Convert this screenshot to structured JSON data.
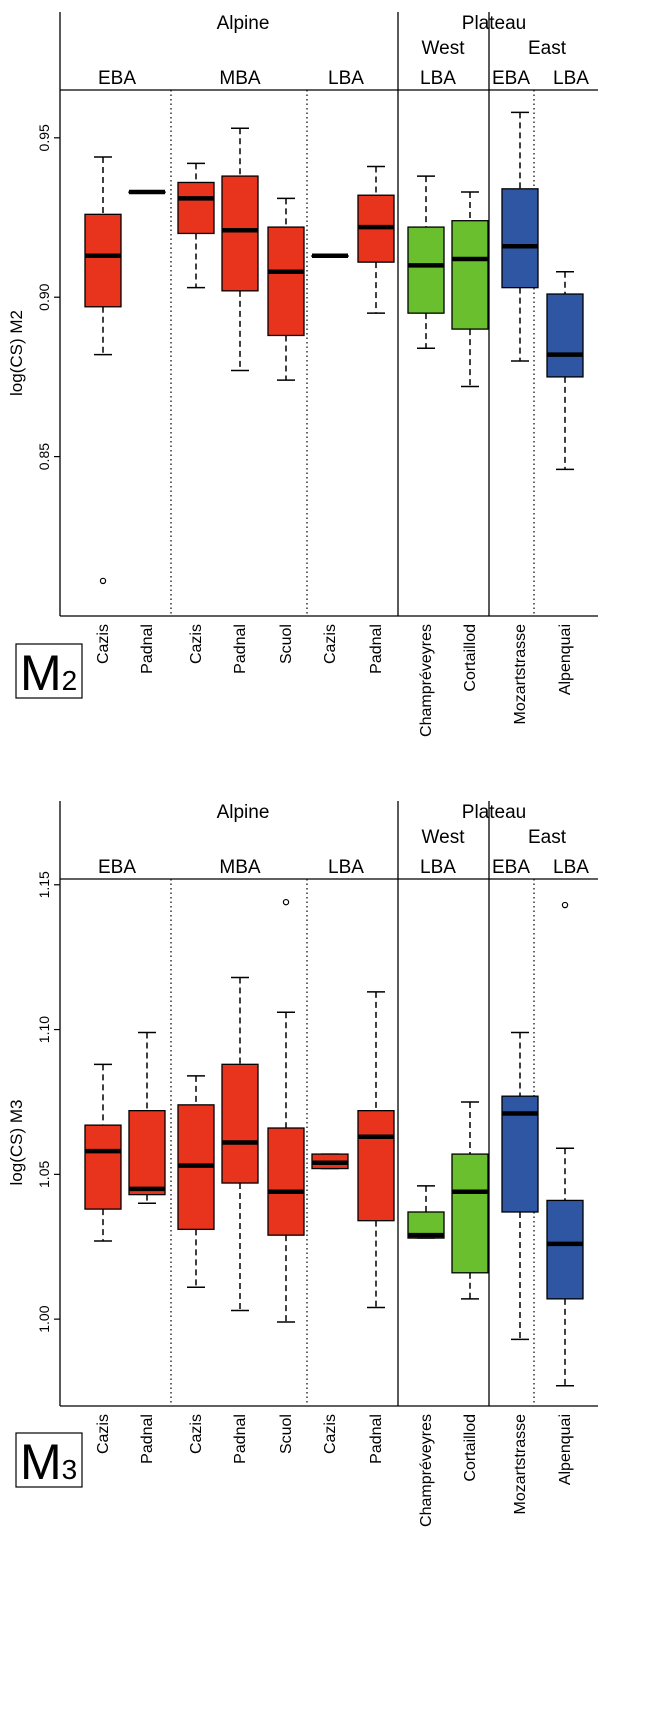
{
  "colors": {
    "alpine": "#e8341c",
    "west": "#6abf2e",
    "east": "#2e56a3"
  },
  "chart_data": [
    {
      "type": "boxplot",
      "tag": "M",
      "tag_sub": "2",
      "ylabel": "log(CS) M2",
      "ylim": [
        0.8,
        0.965
      ],
      "yticks": [
        0.85,
        0.9,
        0.95
      ],
      "ytick_labels": [
        "0.85",
        "0.90",
        "0.95"
      ],
      "region_headers": [
        {
          "label": "Alpine"
        },
        {
          "label": "Plateau"
        },
        {
          "label": "West"
        },
        {
          "label": "East"
        }
      ],
      "period_headers": [
        "EBA",
        "MBA",
        "LBA",
        "LBA",
        "EBA",
        "LBA"
      ],
      "categories": [
        "Cazis",
        "Padnal",
        "Cazis",
        "Padnal",
        "Scuol",
        "Cazis",
        "Padnal",
        "Champréveyres",
        "Cortaillod",
        "Mozartstrasse",
        "Alpenquai"
      ],
      "groups": [
        "alpine",
        "alpine",
        "alpine",
        "alpine",
        "alpine",
        "alpine",
        "alpine",
        "west",
        "west",
        "east",
        "east"
      ],
      "boxes": [
        {
          "min": 0.882,
          "q1": 0.897,
          "median": 0.913,
          "q3": 0.926,
          "max": 0.944,
          "outliers": [
            0.811
          ]
        },
        {
          "min": 0.933,
          "q1": 0.933,
          "median": 0.933,
          "q3": 0.933,
          "max": 0.933,
          "outliers": []
        },
        {
          "min": 0.903,
          "q1": 0.92,
          "median": 0.931,
          "q3": 0.936,
          "max": 0.942,
          "outliers": []
        },
        {
          "min": 0.877,
          "q1": 0.902,
          "median": 0.921,
          "q3": 0.938,
          "max": 0.953,
          "outliers": []
        },
        {
          "min": 0.874,
          "q1": 0.888,
          "median": 0.908,
          "q3": 0.922,
          "max": 0.931,
          "outliers": []
        },
        {
          "min": 0.913,
          "q1": 0.913,
          "median": 0.913,
          "q3": 0.913,
          "max": 0.913,
          "outliers": []
        },
        {
          "min": 0.895,
          "q1": 0.911,
          "median": 0.922,
          "q3": 0.932,
          "max": 0.941,
          "outliers": []
        },
        {
          "min": 0.884,
          "q1": 0.895,
          "median": 0.91,
          "q3": 0.922,
          "max": 0.938,
          "outliers": []
        },
        {
          "min": 0.872,
          "q1": 0.89,
          "median": 0.912,
          "q3": 0.924,
          "max": 0.933,
          "outliers": []
        },
        {
          "min": 0.88,
          "q1": 0.903,
          "median": 0.916,
          "q3": 0.934,
          "max": 0.958,
          "outliers": []
        },
        {
          "min": 0.846,
          "q1": 0.875,
          "median": 0.882,
          "q3": 0.901,
          "max": 0.908,
          "outliers": []
        }
      ]
    },
    {
      "type": "boxplot",
      "tag": "M",
      "tag_sub": "3",
      "ylabel": "log(CS) M3",
      "ylim": [
        0.97,
        1.152
      ],
      "yticks": [
        1.0,
        1.05,
        1.1,
        1.15
      ],
      "ytick_labels": [
        "1.00",
        "1.05",
        "1.10",
        "1.15"
      ],
      "region_headers": [
        {
          "label": "Alpine"
        },
        {
          "label": "Plateau"
        },
        {
          "label": "West"
        },
        {
          "label": "East"
        }
      ],
      "period_headers": [
        "EBA",
        "MBA",
        "LBA",
        "LBA",
        "EBA",
        "LBA"
      ],
      "categories": [
        "Cazis",
        "Padnal",
        "Cazis",
        "Padnal",
        "Scuol",
        "Cazis",
        "Padnal",
        "Champréveyres",
        "Cortaillod",
        "Mozartstrasse",
        "Alpenquai"
      ],
      "groups": [
        "alpine",
        "alpine",
        "alpine",
        "alpine",
        "alpine",
        "alpine",
        "alpine",
        "west",
        "west",
        "east",
        "east"
      ],
      "boxes": [
        {
          "min": 1.027,
          "q1": 1.038,
          "median": 1.058,
          "q3": 1.067,
          "max": 1.088,
          "outliers": []
        },
        {
          "min": 1.04,
          "q1": 1.043,
          "median": 1.045,
          "q3": 1.072,
          "max": 1.099,
          "outliers": []
        },
        {
          "min": 1.011,
          "q1": 1.031,
          "median": 1.053,
          "q3": 1.074,
          "max": 1.084,
          "outliers": []
        },
        {
          "min": 1.003,
          "q1": 1.047,
          "median": 1.061,
          "q3": 1.088,
          "max": 1.118,
          "outliers": []
        },
        {
          "min": 0.999,
          "q1": 1.029,
          "median": 1.044,
          "q3": 1.066,
          "max": 1.106,
          "outliers": [
            1.144
          ]
        },
        {
          "min": 1.052,
          "q1": 1.052,
          "median": 1.054,
          "q3": 1.057,
          "max": 1.057,
          "outliers": []
        },
        {
          "min": 1.004,
          "q1": 1.034,
          "median": 1.063,
          "q3": 1.072,
          "max": 1.113,
          "outliers": []
        },
        {
          "min": 1.028,
          "q1": 1.028,
          "median": 1.029,
          "q3": 1.037,
          "max": 1.046,
          "outliers": []
        },
        {
          "min": 1.007,
          "q1": 1.016,
          "median": 1.044,
          "q3": 1.057,
          "max": 1.075,
          "outliers": []
        },
        {
          "min": 0.993,
          "q1": 1.037,
          "median": 1.071,
          "q3": 1.077,
          "max": 1.099,
          "outliers": []
        },
        {
          "min": 0.977,
          "q1": 1.007,
          "median": 1.026,
          "q3": 1.041,
          "max": 1.059,
          "outliers": [
            1.143
          ]
        }
      ]
    }
  ]
}
